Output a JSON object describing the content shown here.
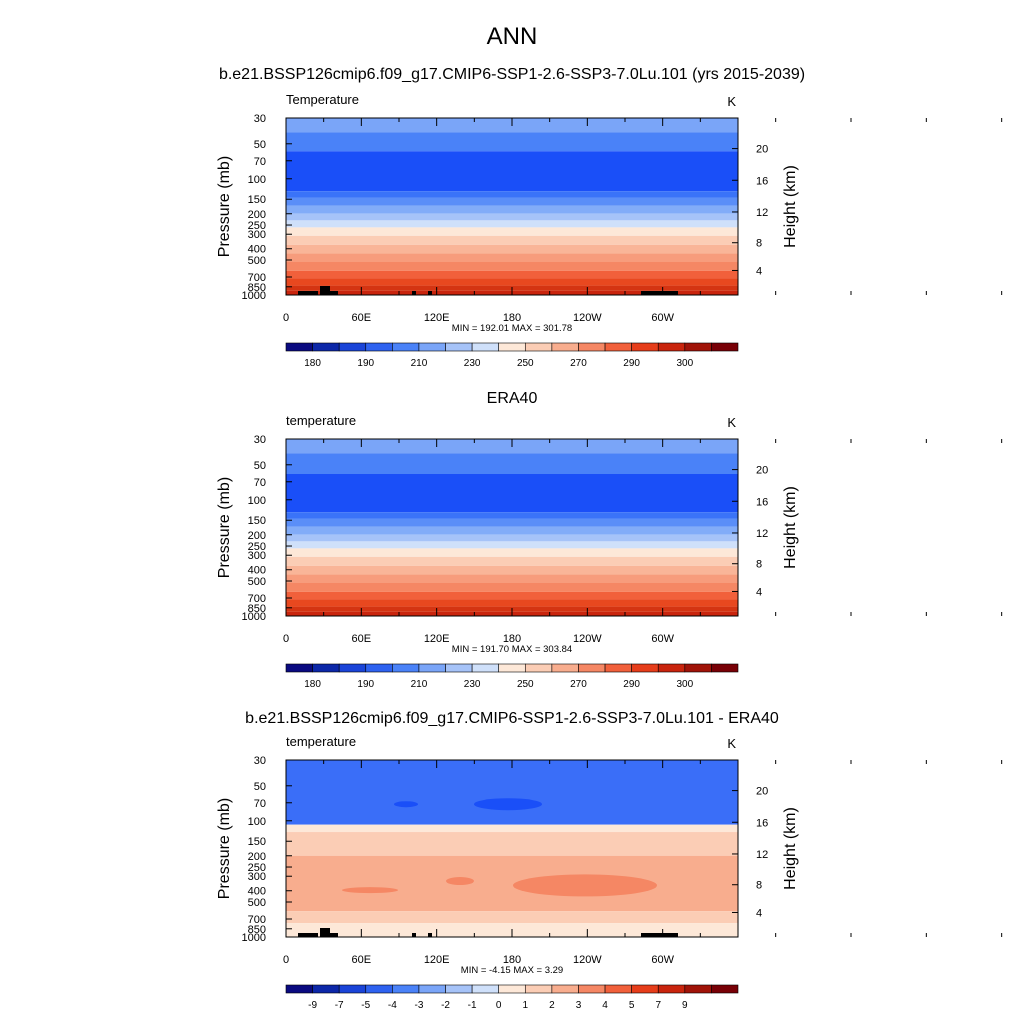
{
  "figure": {
    "title": "ANN",
    "subtitle_top": "b.e21.BSSP126cmip6.f09_g17.CMIP6-SSP1-2.6-SSP3-7.0Lu.101 (yrs 2015-2039)",
    "subtitle_mid": "ERA40",
    "subtitle_bottom": "b.e21.BSSP126cmip6.f09_g17.CMIP6-SSP1-2.6-SSP3-7.0Lu.101 - ERA40"
  },
  "chart_data": [
    {
      "type": "heatmap",
      "panel_label": "Temperature",
      "units": "K",
      "xlabel": "",
      "ylabel": "Pressure (mb)",
      "ylabel_right": "Height (km)",
      "x_ticks": [
        "0",
        "60E",
        "120E",
        "180",
        "120W",
        "60W"
      ],
      "y_ticks": [
        "30",
        "50",
        "70",
        "100",
        "150",
        "200",
        "250",
        "300",
        "400",
        "500",
        "700",
        "850",
        "1000"
      ],
      "right_ticks": [
        "20",
        "16",
        "12",
        "8",
        "4"
      ],
      "stats": "MIN = 192.01  MAX = 301.78",
      "colorbar_labels": [
        "180",
        "190",
        "210",
        "230",
        "250",
        "270",
        "290",
        "300"
      ],
      "colorbar_colors": [
        "#0a0a80",
        "#0c27a8",
        "#1a44d8",
        "#2e62f0",
        "#4a82f8",
        "#7aa5f8",
        "#a6c3f8",
        "#cfe0fa",
        "#fde8d8",
        "#fbcdb5",
        "#f8ad8e",
        "#f58764",
        "#f1603b",
        "#e63d1a",
        "#c9240d",
        "#a01308",
        "#780006"
      ],
      "levels": [
        {
          "from": 30,
          "to": 40,
          "color": "#7aa5f8"
        },
        {
          "from": 40,
          "to": 58,
          "color": "#4a82f8"
        },
        {
          "from": 58,
          "to": 128,
          "color": "#1a4ff8"
        },
        {
          "from": 128,
          "to": 145,
          "color": "#3a73f8"
        },
        {
          "from": 145,
          "to": 170,
          "color": "#5a8ef8"
        },
        {
          "from": 170,
          "to": 200,
          "color": "#82acf8"
        },
        {
          "from": 200,
          "to": 228,
          "color": "#a6c3f8"
        },
        {
          "from": 228,
          "to": 262,
          "color": "#cfe0fa"
        },
        {
          "from": 262,
          "to": 310,
          "color": "#fde8d8"
        },
        {
          "from": 310,
          "to": 370,
          "color": "#fbcdb5"
        },
        {
          "from": 370,
          "to": 440,
          "color": "#f9b598"
        },
        {
          "from": 440,
          "to": 520,
          "color": "#f79c7c"
        },
        {
          "from": 520,
          "to": 620,
          "color": "#f58764"
        },
        {
          "from": 620,
          "to": 720,
          "color": "#f1603b"
        },
        {
          "from": 720,
          "to": 830,
          "color": "#e8481f"
        },
        {
          "from": 830,
          "to": 920,
          "color": "#d43412"
        },
        {
          "from": 920,
          "to": 1000,
          "color": "#c9240d"
        }
      ],
      "terrain": true
    },
    {
      "type": "heatmap",
      "panel_label": "temperature",
      "units": "K",
      "xlabel": "",
      "ylabel": "Pressure (mb)",
      "ylabel_right": "Height (km)",
      "x_ticks": [
        "0",
        "60E",
        "120E",
        "180",
        "120W",
        "60W"
      ],
      "y_ticks": [
        "30",
        "50",
        "70",
        "100",
        "150",
        "200",
        "250",
        "300",
        "400",
        "500",
        "700",
        "850",
        "1000"
      ],
      "right_ticks": [
        "20",
        "16",
        "12",
        "8",
        "4"
      ],
      "stats": "MIN = 191.70  MAX = 303.84",
      "colorbar_labels": [
        "180",
        "190",
        "210",
        "230",
        "250",
        "270",
        "290",
        "300"
      ],
      "colorbar_colors": [
        "#0a0a80",
        "#0c27a8",
        "#1a44d8",
        "#2e62f0",
        "#4a82f8",
        "#7aa5f8",
        "#a6c3f8",
        "#cfe0fa",
        "#fde8d8",
        "#fbcdb5",
        "#f8ad8e",
        "#f58764",
        "#f1603b",
        "#e63d1a",
        "#c9240d",
        "#a01308",
        "#780006"
      ],
      "levels": [
        {
          "from": 30,
          "to": 40,
          "color": "#7aa5f8"
        },
        {
          "from": 40,
          "to": 60,
          "color": "#4a82f8"
        },
        {
          "from": 60,
          "to": 128,
          "color": "#1a4ff8"
        },
        {
          "from": 128,
          "to": 145,
          "color": "#3a73f8"
        },
        {
          "from": 145,
          "to": 170,
          "color": "#5a8ef8"
        },
        {
          "from": 170,
          "to": 200,
          "color": "#82acf8"
        },
        {
          "from": 200,
          "to": 228,
          "color": "#a6c3f8"
        },
        {
          "from": 228,
          "to": 262,
          "color": "#cfe0fa"
        },
        {
          "from": 262,
          "to": 310,
          "color": "#fde8d8"
        },
        {
          "from": 310,
          "to": 370,
          "color": "#fbcdb5"
        },
        {
          "from": 370,
          "to": 440,
          "color": "#f9b598"
        },
        {
          "from": 440,
          "to": 520,
          "color": "#f79c7c"
        },
        {
          "from": 520,
          "to": 620,
          "color": "#f58764"
        },
        {
          "from": 620,
          "to": 720,
          "color": "#f1603b"
        },
        {
          "from": 720,
          "to": 830,
          "color": "#e8481f"
        },
        {
          "from": 830,
          "to": 920,
          "color": "#d43412"
        },
        {
          "from": 920,
          "to": 1000,
          "color": "#c9240d"
        }
      ],
      "terrain": false
    },
    {
      "type": "heatmap",
      "panel_label": "temperature",
      "units": "K",
      "xlabel": "",
      "ylabel": "Pressure (mb)",
      "ylabel_right": "Height (km)",
      "x_ticks": [
        "0",
        "60E",
        "120E",
        "180",
        "120W",
        "60W"
      ],
      "y_ticks": [
        "30",
        "50",
        "70",
        "100",
        "150",
        "200",
        "250",
        "300",
        "400",
        "500",
        "700",
        "850",
        "1000"
      ],
      "right_ticks": [
        "20",
        "16",
        "12",
        "8",
        "4"
      ],
      "stats": "MIN =  -4.15  MAX =   3.29",
      "colorbar_labels": [
        "-9",
        "-7",
        "-5",
        "-4",
        "-3",
        "-2",
        "-1",
        "0",
        "1",
        "2",
        "3",
        "4",
        "5",
        "7",
        "9"
      ],
      "colorbar_colors": [
        "#0a0a80",
        "#0c27a8",
        "#1a44d8",
        "#2e62f0",
        "#4a82f8",
        "#7aa5f8",
        "#a6c3f8",
        "#cfe0fa",
        "#fde8d8",
        "#fbcdb5",
        "#f8ad8e",
        "#f58764",
        "#f1603b",
        "#e63d1a",
        "#c9240d",
        "#a01308",
        "#780006"
      ],
      "levels": [
        {
          "from": 30,
          "to": 108,
          "color": "#3a6ef8"
        },
        {
          "from": 108,
          "to": 125,
          "color": "#fde8d8"
        },
        {
          "from": 125,
          "to": 200,
          "color": "#fbcdb5"
        },
        {
          "from": 200,
          "to": 600,
          "color": "#f8ad8e"
        },
        {
          "from": 600,
          "to": 760,
          "color": "#fbcdb5"
        },
        {
          "from": 760,
          "to": 1000,
          "color": "#fde8d8"
        }
      ],
      "terrain": true
    }
  ]
}
